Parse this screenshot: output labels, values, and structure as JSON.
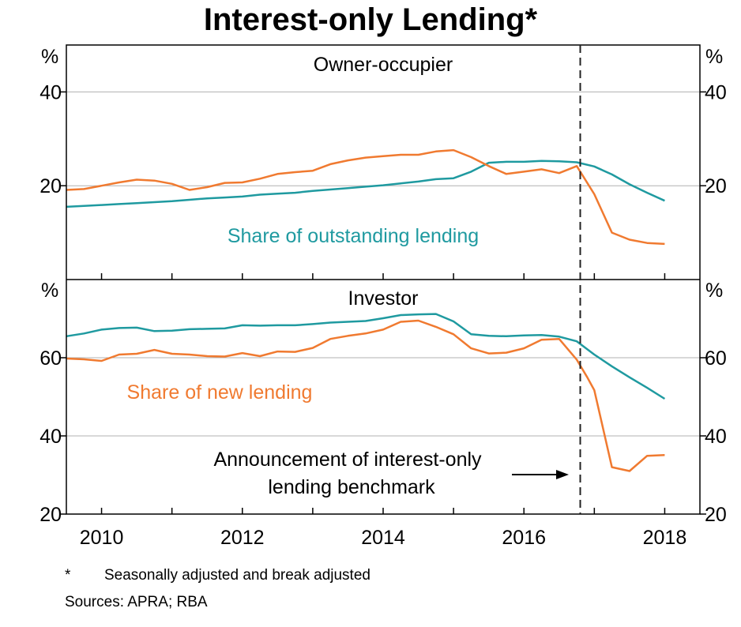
{
  "title": "Interest-only Lending*",
  "footnote_mark": "*",
  "footnote_text": "Seasonally adjusted and break adjusted",
  "sources": "Sources: APRA; RBA",
  "colors": {
    "outstanding": "#1f9aa0",
    "new": "#f07a30",
    "grid": "#b0b0b0",
    "axis": "#000000"
  },
  "chart_data": [
    {
      "type": "line",
      "panel_title": "Owner-occupier",
      "unit_label": "%",
      "ylim": [
        0,
        50
      ],
      "yticks": [
        20,
        40
      ],
      "xlim": [
        2009.5,
        2018.5
      ],
      "xticks": [
        2010,
        2012,
        2014,
        2016,
        2018
      ],
      "grid": true,
      "series": [
        {
          "name": "Share of outstanding lending",
          "color": "#1f9aa0",
          "x": [
            2009.5,
            2009.75,
            2010.0,
            2010.25,
            2010.5,
            2010.75,
            2011.0,
            2011.25,
            2011.5,
            2011.75,
            2012.0,
            2012.25,
            2012.5,
            2012.75,
            2013.0,
            2013.25,
            2013.5,
            2013.75,
            2014.0,
            2014.25,
            2014.5,
            2014.75,
            2015.0,
            2015.25,
            2015.5,
            2015.75,
            2016.0,
            2016.25,
            2016.5,
            2016.75,
            2017.0,
            2017.25,
            2017.5,
            2017.75,
            2018.0
          ],
          "y": [
            15.5,
            15.7,
            15.9,
            16.1,
            16.3,
            16.5,
            16.7,
            17.0,
            17.3,
            17.5,
            17.7,
            18.1,
            18.3,
            18.5,
            18.9,
            19.2,
            19.5,
            19.8,
            20.1,
            20.5,
            20.9,
            21.4,
            21.6,
            23.0,
            24.9,
            25.1,
            25.1,
            25.3,
            25.2,
            25.0,
            24.1,
            22.4,
            20.3,
            18.5,
            16.8
          ]
        },
        {
          "name": "",
          "color": "#f07a30",
          "x": [
            2009.5,
            2009.75,
            2010.0,
            2010.25,
            2010.5,
            2010.75,
            2011.0,
            2011.25,
            2011.5,
            2011.75,
            2012.0,
            2012.25,
            2012.5,
            2012.75,
            2013.0,
            2013.25,
            2013.5,
            2013.75,
            2014.0,
            2014.25,
            2014.5,
            2014.75,
            2015.0,
            2015.25,
            2015.5,
            2015.75,
            2016.0,
            2016.25,
            2016.5,
            2016.75,
            2017.0,
            2017.25,
            2017.5,
            2017.75,
            2018.0
          ],
          "y": [
            19.1,
            19.3,
            20.0,
            20.7,
            21.3,
            21.1,
            20.4,
            19.1,
            19.7,
            20.6,
            20.7,
            21.5,
            22.5,
            22.9,
            23.2,
            24.6,
            25.4,
            26.0,
            26.3,
            26.6,
            26.6,
            27.3,
            27.6,
            26.1,
            24.2,
            22.5,
            23.0,
            23.5,
            22.7,
            24.2,
            18.2,
            10.0,
            8.5,
            7.8,
            7.6
          ]
        }
      ]
    },
    {
      "type": "line",
      "panel_title": "Investor",
      "unit_label": "%",
      "ylim": [
        20,
        80
      ],
      "yticks": [
        20,
        40,
        60
      ],
      "xlim": [
        2009.5,
        2018.5
      ],
      "xticks": [
        2010,
        2012,
        2014,
        2016,
        2018
      ],
      "grid": true,
      "series": [
        {
          "name": "",
          "color": "#1f9aa0",
          "x": [
            2009.5,
            2009.75,
            2010.0,
            2010.25,
            2010.5,
            2010.75,
            2011.0,
            2011.25,
            2011.5,
            2011.75,
            2012.0,
            2012.25,
            2012.5,
            2012.75,
            2013.0,
            2013.25,
            2013.5,
            2013.75,
            2014.0,
            2014.25,
            2014.5,
            2014.75,
            2015.0,
            2015.25,
            2015.5,
            2015.75,
            2016.0,
            2016.25,
            2016.5,
            2016.75,
            2017.0,
            2017.25,
            2017.5,
            2017.75,
            2018.0
          ],
          "y": [
            65.5,
            66.2,
            67.2,
            67.6,
            67.7,
            66.8,
            66.9,
            67.3,
            67.4,
            67.5,
            68.3,
            68.2,
            68.3,
            68.3,
            68.6,
            69.0,
            69.2,
            69.4,
            70.1,
            70.9,
            71.1,
            71.2,
            69.3,
            66.0,
            65.6,
            65.5,
            65.7,
            65.8,
            65.4,
            64.2,
            60.8,
            57.8,
            55.0,
            52.3,
            49.5
          ]
        },
        {
          "name": "Share of new lending",
          "color": "#f07a30",
          "x": [
            2009.5,
            2009.75,
            2010.0,
            2010.25,
            2010.5,
            2010.75,
            2011.0,
            2011.25,
            2011.5,
            2011.75,
            2012.0,
            2012.25,
            2012.5,
            2012.75,
            2013.0,
            2013.25,
            2013.5,
            2013.75,
            2014.0,
            2014.25,
            2014.5,
            2014.75,
            2015.0,
            2015.25,
            2015.5,
            2015.75,
            2016.0,
            2016.25,
            2016.5,
            2016.75,
            2016.9,
            2017.0,
            2017.25,
            2017.5,
            2017.75,
            2018.0
          ],
          "y": [
            59.8,
            59.6,
            59.2,
            60.8,
            61.0,
            62.0,
            61.0,
            60.8,
            60.4,
            60.3,
            61.2,
            60.4,
            61.6,
            61.5,
            62.5,
            64.8,
            65.6,
            66.2,
            67.2,
            69.2,
            69.5,
            67.9,
            66.0,
            62.4,
            61.1,
            61.3,
            62.4,
            64.6,
            64.8,
            59.5,
            55.0,
            51.7,
            32.0,
            31.0,
            34.9,
            35.1
          ]
        }
      ]
    }
  ],
  "series_labels": {
    "outstanding": "Share of outstanding lending",
    "new": "Share of new lending"
  },
  "event": {
    "x": 2016.8,
    "annotation_line1": "Announcement of interest-only",
    "annotation_line2": "lending benchmark"
  }
}
